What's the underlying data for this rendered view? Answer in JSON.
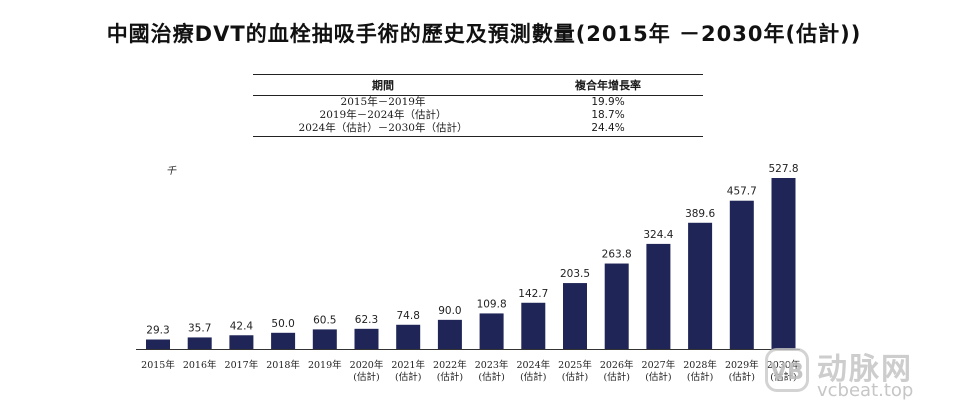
{
  "title": "中國治療DVT的血栓抽吸手術的歷史及預測數量(2015年 －2030年(估計))",
  "cagr_table": {
    "header_period": "期間",
    "header_rate": "複合年增長率",
    "rows": [
      {
        "period": "2015年－2019年",
        "rate": "19.9%"
      },
      {
        "period": "2019年－2024年（估計）",
        "rate": "18.7%"
      },
      {
        "period": "2024年（估計）－2030年（估計）",
        "rate": "24.4%"
      }
    ]
  },
  "unit_label": "千",
  "chart_data": {
    "type": "bar",
    "title": "中國治療DVT的血栓抽吸手術的歷史及預測數量(2015年 －2030年(估計))",
    "unit": "千",
    "categories": [
      "2015年",
      "2016年",
      "2017年",
      "2018年",
      "2019年",
      "2020年(估計)",
      "2021年(估計)",
      "2022年(估計)",
      "2023年(估計)",
      "2024年(估計)",
      "2025年(估計)",
      "2026年(估計)",
      "2027年(估計)",
      "2028年(估計)",
      "2029年(估計)",
      "2030年(估計)"
    ],
    "tick_lines": [
      [
        "2015年"
      ],
      [
        "2016年"
      ],
      [
        "2017年"
      ],
      [
        "2018年"
      ],
      [
        "2019年"
      ],
      [
        "2020年",
        "(估計)"
      ],
      [
        "2021年",
        "(估計)"
      ],
      [
        "2022年",
        "(估計)"
      ],
      [
        "2023年",
        "(估計)"
      ],
      [
        "2024年",
        "(估計)"
      ],
      [
        "2025年",
        "(估計)"
      ],
      [
        "2026年",
        "(估計)"
      ],
      [
        "2027年",
        "(估計)"
      ],
      [
        "2028年",
        "(估計)"
      ],
      [
        "2029年",
        "(估計)"
      ],
      [
        "2030年",
        "(估計)"
      ]
    ],
    "values": [
      29.3,
      35.7,
      42.4,
      50.0,
      60.5,
      62.3,
      74.8,
      90.0,
      109.8,
      142.7,
      203.5,
      263.8,
      324.4,
      389.6,
      457.7,
      527.8
    ],
    "value_labels": [
      "29.3",
      "35.7",
      "42.4",
      "50.0",
      "60.5",
      "62.3",
      "74.8",
      "90.0",
      "109.8",
      "142.7",
      "203.5",
      "263.8",
      "324.4",
      "389.6",
      "457.7",
      "527.8"
    ],
    "bar_color": "#1f2557",
    "ylim": [
      0,
      527.8
    ],
    "grid": false,
    "legend": "none"
  },
  "watermark": {
    "icon_text": "VB",
    "name": "动脉网",
    "url": "vcbeat.top"
  }
}
